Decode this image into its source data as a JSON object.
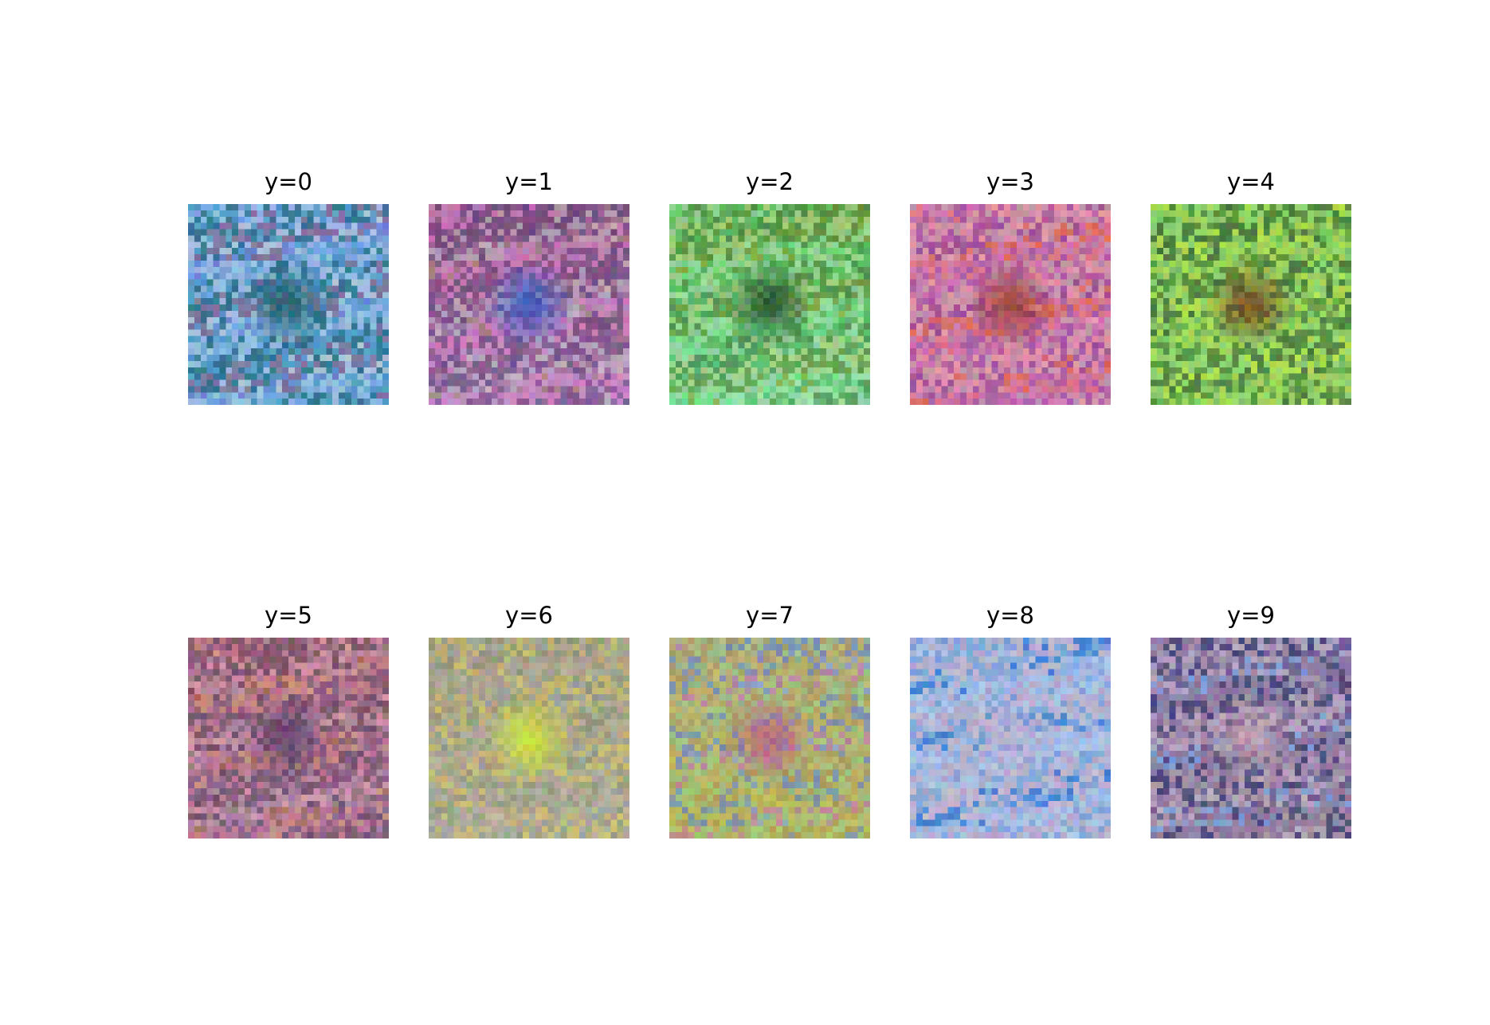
{
  "panels": [
    {
      "title": "y=0",
      "palette": [
        "#6f86d8",
        "#7fb4e6",
        "#a9d2e8",
        "#4fa3c4",
        "#1f6f7a",
        "#8a6f8c",
        "#c6d6e4",
        "#5f8fc8"
      ],
      "center": "#1c5e66"
    },
    {
      "title": "y=1",
      "palette": [
        "#a0787a",
        "#c27fc0",
        "#d26fc6",
        "#7a3f86",
        "#5d3a7a",
        "#b8a4c0",
        "#9a5f9a",
        "#c4b2c8"
      ],
      "center": "#2e5ad0"
    },
    {
      "title": "y=2",
      "palette": [
        "#7fa83a",
        "#6ae08a",
        "#9ce0b0",
        "#4fb86a",
        "#3f8a4a",
        "#a8d48a",
        "#5a8f3a",
        "#8fd8a0"
      ],
      "center": "#1e4a2a"
    },
    {
      "title": "y=3",
      "palette": [
        "#e06a58",
        "#d87aa0",
        "#c77ad0",
        "#9f5ac0",
        "#b7a0c8",
        "#e0a4c8",
        "#8a4ab0",
        "#d86a6a"
      ],
      "center": "#9a3a2a"
    },
    {
      "title": "y=4",
      "palette": [
        "#6aa84a",
        "#8ad06a",
        "#b8e85a",
        "#4f8a3a",
        "#9ee07a",
        "#3f6a3a",
        "#c8f04a",
        "#7ab85a"
      ],
      "center": "#7a3a1a"
    },
    {
      "title": "y=5",
      "palette": [
        "#a86a5a",
        "#d89a8a",
        "#c87aa0",
        "#8a5a8a",
        "#6a4a6a",
        "#b88ab0",
        "#e0a0c0",
        "#9a7a8a"
      ],
      "center": "#5a3a6a"
    },
    {
      "title": "y=6",
      "palette": [
        "#a89a7a",
        "#b8b08a",
        "#9aa0a0",
        "#c8c06a",
        "#8a9a7a",
        "#b0a8a0",
        "#a0a890",
        "#c0b4a0"
      ],
      "center": "#d8f02a"
    },
    {
      "title": "y=7",
      "palette": [
        "#8aa0c8",
        "#c87a9a",
        "#c8b85a",
        "#a8c870",
        "#b8a04a",
        "#7a8ab0",
        "#d0b84a",
        "#9ab87a"
      ],
      "center": "#c05a80"
    },
    {
      "title": "y=8",
      "palette": [
        "#8aaee0",
        "#a0c0e8",
        "#b8c8e4",
        "#c0a8c8",
        "#7aa0d8",
        "#d0b8c8",
        "#2a70d0",
        "#9ab8e0"
      ],
      "center": "#c4b4d0"
    },
    {
      "title": "y=9",
      "palette": [
        "#7a9ad8",
        "#8a7a9a",
        "#9a6a8a",
        "#3a2a5a",
        "#b08a9a",
        "#c8a8b8",
        "#6a4a7a",
        "#8aa0c8"
      ],
      "center": "#c8a0b0"
    }
  ]
}
